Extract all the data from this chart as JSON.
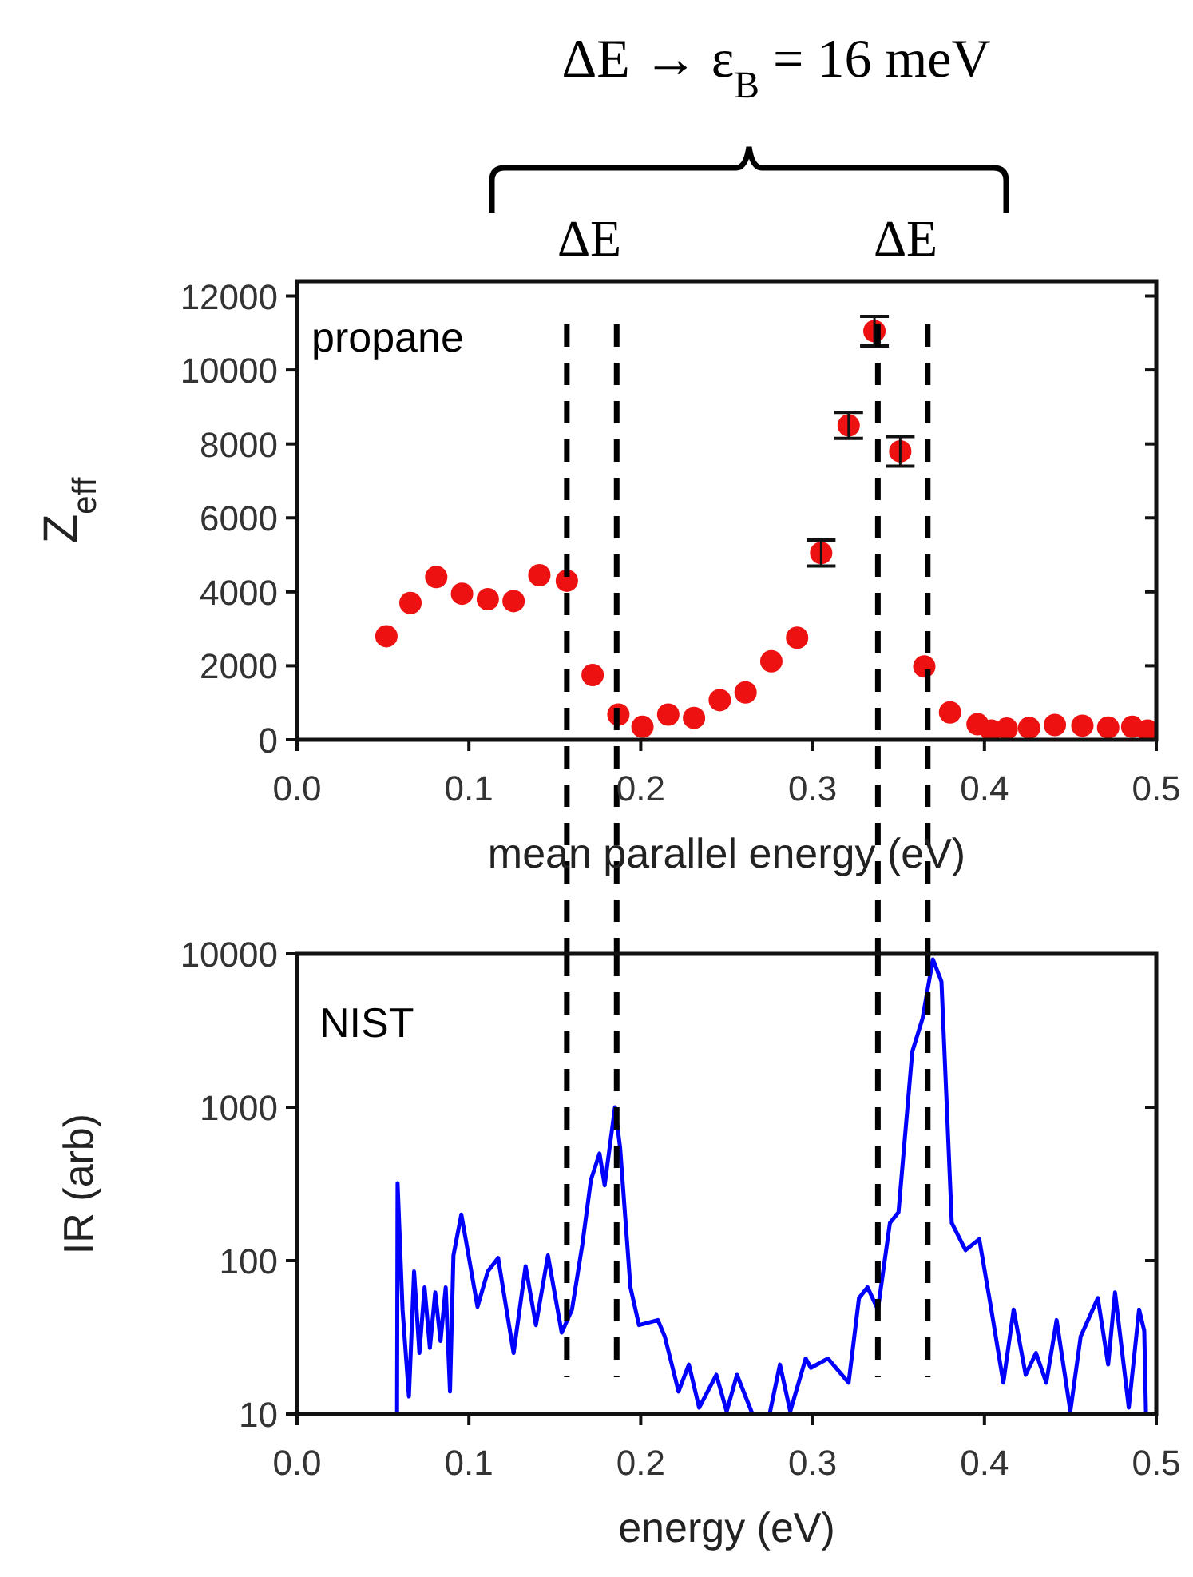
{
  "chart_data": [
    {
      "type": "scatter",
      "xlabel": "mean parallel energy (eV)",
      "ylabel": "Z$_{eff}$",
      "color": "#ee1111",
      "marker": "circle",
      "x": [
        0.052,
        0.066,
        0.081,
        0.096,
        0.111,
        0.126,
        0.141,
        0.157,
        0.172,
        0.187,
        0.201,
        0.216,
        0.231,
        0.246,
        0.261,
        0.276,
        0.291,
        0.305,
        0.321,
        0.336,
        0.351,
        0.365,
        0.38,
        0.396,
        0.404,
        0.413,
        0.426,
        0.441,
        0.457,
        0.472,
        0.486,
        0.495
      ],
      "values": [
        2800,
        3700,
        4400,
        3950,
        3800,
        3750,
        4450,
        4300,
        1750,
        680,
        350,
        680,
        590,
        1070,
        1280,
        2120,
        2760,
        5050,
        8500,
        11050,
        7800,
        1980,
        740,
        420,
        250,
        300,
        320,
        400,
        380,
        330,
        350,
        250
      ],
      "errors": [
        null,
        null,
        null,
        null,
        null,
        null,
        null,
        null,
        null,
        null,
        null,
        null,
        null,
        null,
        null,
        null,
        null,
        350,
        350,
        400,
        400,
        null,
        null,
        null,
        null,
        null,
        null,
        null,
        null,
        null,
        null,
        null
      ],
      "xlim": [
        0,
        0.5
      ],
      "ylim": [
        0,
        12400
      ],
      "xticks": [
        {
          "value": 0,
          "label": "0.0"
        },
        0.1,
        0.2,
        0.3,
        0.4,
        0.5
      ],
      "yticks": [
        0,
        2000,
        4000,
        6000,
        8000,
        10000,
        12000
      ],
      "annotations": [
        "ΔE → ε$_{B}$ = 16 meV",
        "ΔE",
        "ΔE",
        "propane"
      ],
      "ref_lines": [
        {
          "axis": "x",
          "value": 0.157,
          "color": "#000000",
          "line_style": "dashed"
        },
        {
          "axis": "x",
          "value": 0.186,
          "color": "#000000",
          "line_style": "dashed"
        },
        {
          "axis": "x",
          "value": 0.338,
          "color": "#000000",
          "line_style": "dashed"
        },
        {
          "axis": "x",
          "value": 0.367,
          "color": "#000000",
          "line_style": "dashed"
        }
      ]
    },
    {
      "type": "line",
      "xlabel": "energy (eV)",
      "ylabel": "IR (arb)",
      "color": "#0000ff",
      "log": "y",
      "line_style": "solid",
      "x": [
        0.0582,
        0.0585,
        0.0614,
        0.0651,
        0.0681,
        0.0712,
        0.0742,
        0.0773,
        0.0804,
        0.0835,
        0.0865,
        0.089,
        0.091,
        0.0956,
        0.0987,
        0.105,
        0.111,
        0.117,
        0.126,
        0.133,
        0.139,
        0.146,
        0.154,
        0.16,
        0.166,
        0.171,
        0.176,
        0.179,
        0.185,
        0.188,
        0.194,
        0.199,
        0.21,
        0.214,
        0.222,
        0.228,
        0.234,
        0.244,
        0.25,
        0.256,
        0.265,
        0.275,
        0.281,
        0.287,
        0.296,
        0.299,
        0.309,
        0.321,
        0.327,
        0.332,
        0.338,
        0.345,
        0.35,
        0.358,
        0.364,
        0.37,
        0.375,
        0.381,
        0.389,
        0.397,
        0.404,
        0.411,
        0.417,
        0.424,
        0.43,
        0.436,
        0.442,
        0.45,
        0.456,
        0.466,
        0.472,
        0.476,
        0.484,
        0.49,
        0.493,
        0.494
      ],
      "values": [
        10,
        320,
        48,
        13,
        85,
        25,
        67,
        27,
        62,
        30,
        67,
        14,
        108,
        200,
        127,
        50,
        85,
        104,
        25,
        92,
        38,
        108,
        34,
        48,
        127,
        336,
        500,
        310,
        1000,
        545,
        67,
        38,
        41,
        32,
        14,
        21,
        11,
        18,
        10.4,
        18,
        10,
        10,
        21,
        10.4,
        23,
        20,
        23,
        16,
        57,
        67,
        48,
        176,
        207,
        2300,
        3800,
        9200,
        6600,
        176,
        117,
        138,
        48,
        16,
        48,
        18,
        25,
        16,
        41,
        10.4,
        32,
        57,
        21,
        62,
        11,
        48,
        35,
        10.4
      ],
      "xlim": [
        0,
        0.5
      ],
      "ylim": [
        10,
        10000
      ],
      "xticks": [
        {
          "value": 0,
          "label": "0.0"
        },
        0.1,
        0.2,
        0.3,
        0.4,
        0.5
      ],
      "yticks": [
        10,
        100,
        1000,
        10000
      ],
      "annotations": [
        "NIST"
      ],
      "ref_lines": [
        {
          "axis": "x",
          "value": 0.157,
          "color": "#000000",
          "line_style": "dashed"
        },
        {
          "axis": "x",
          "value": 0.186,
          "color": "#000000",
          "line_style": "dashed"
        },
        {
          "axis": "x",
          "value": 0.338,
          "color": "#000000",
          "line_style": "dashed"
        },
        {
          "axis": "x",
          "value": 0.367,
          "color": "#000000",
          "line_style": "dashed"
        }
      ]
    }
  ]
}
